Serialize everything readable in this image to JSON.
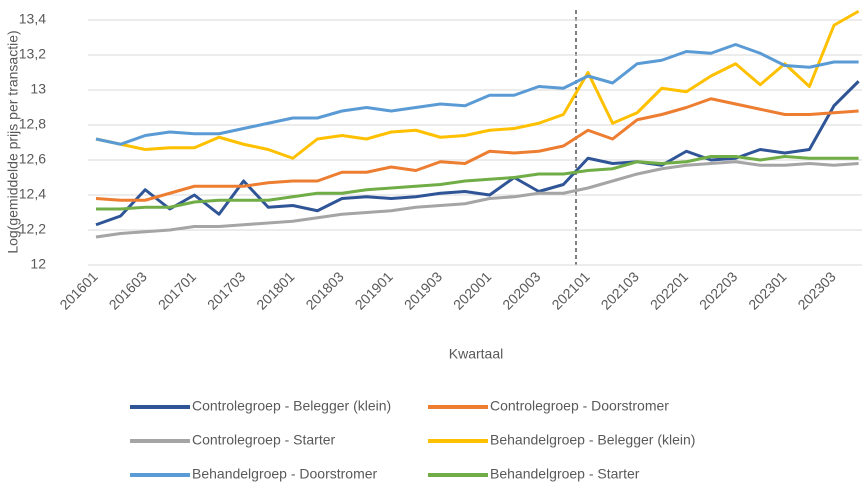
{
  "chart_data": {
    "type": "line",
    "y_label": "Log(gemiddelde prijs per transactie)",
    "x_label": "Kwartaal",
    "categories": [
      "201601",
      null,
      "201603",
      null,
      "201701",
      null,
      "201703",
      null,
      "201801",
      null,
      "201803",
      null,
      "201901",
      null,
      "201903",
      null,
      "202001",
      null,
      "202003",
      null,
      "202101",
      null,
      "202103",
      null,
      "202201",
      null,
      "202203",
      null,
      "202301",
      null,
      "202303",
      null
    ],
    "ylim": [
      12,
      13.4
    ],
    "yticks": [
      12,
      {
        "value": 12.2,
        "label": "12,2"
      },
      {
        "value": 12.4,
        "label": "12,4"
      },
      {
        "value": 12.6,
        "label": "12,6"
      },
      {
        "value": 12.8,
        "label": "12,8"
      },
      13,
      {
        "value": 13.2,
        "label": "13,2"
      },
      {
        "value": 13.4,
        "label": "13,4"
      }
    ],
    "grid": true,
    "legend": "bottom",
    "series": [
      {
        "name": "Controlegroep - Belegger (klein)",
        "color": "#2f5597",
        "values": [
          12.23,
          12.28,
          12.43,
          12.32,
          12.4,
          12.29,
          12.48,
          12.33,
          12.34,
          12.31,
          12.38,
          12.39,
          12.38,
          12.39,
          12.41,
          12.42,
          12.4,
          12.5,
          12.42,
          12.46,
          12.61,
          12.58,
          12.59,
          12.57,
          12.65,
          12.6,
          12.61,
          12.66,
          12.64,
          12.66,
          12.91,
          13.05
        ]
      },
      {
        "name": "Controlegroep - Doorstromer",
        "color": "#ed7d31",
        "values": [
          12.38,
          12.37,
          12.37,
          12.41,
          12.45,
          12.45,
          12.45,
          12.47,
          12.48,
          12.48,
          12.53,
          12.53,
          12.56,
          12.54,
          12.59,
          12.58,
          12.65,
          12.64,
          12.65,
          12.68,
          12.77,
          12.72,
          12.83,
          12.86,
          12.9,
          12.95,
          12.92,
          12.89,
          12.86,
          12.86,
          12.87,
          12.88
        ]
      },
      {
        "name": "Controlegroep - Starter",
        "color": "#a5a5a5",
        "values": [
          12.16,
          12.18,
          12.19,
          12.2,
          12.22,
          12.22,
          12.23,
          12.24,
          12.25,
          12.27,
          12.29,
          12.3,
          12.31,
          12.33,
          12.34,
          12.35,
          12.38,
          12.39,
          12.41,
          12.41,
          12.44,
          12.48,
          12.52,
          12.55,
          12.57,
          12.58,
          12.59,
          12.57,
          12.57,
          12.58,
          12.57,
          12.58
        ]
      },
      {
        "name": "Behandelgroep - Belegger (klein)",
        "color": "#ffc000",
        "values": [
          12.72,
          12.69,
          12.66,
          12.67,
          12.67,
          12.73,
          12.69,
          12.66,
          12.61,
          12.72,
          12.74,
          12.72,
          12.76,
          12.77,
          12.73,
          12.74,
          12.77,
          12.78,
          12.81,
          12.86,
          13.1,
          12.81,
          12.87,
          13.01,
          12.99,
          13.08,
          13.15,
          13.03,
          13.15,
          13.02,
          13.37,
          13.45
        ]
      },
      {
        "name": "Behandelgroep - Doorstromer",
        "color": "#5b9bd5",
        "values": [
          12.72,
          12.69,
          12.74,
          12.76,
          12.75,
          12.75,
          12.78,
          12.81,
          12.84,
          12.84,
          12.88,
          12.9,
          12.88,
          12.9,
          12.92,
          12.91,
          12.97,
          12.97,
          13.02,
          13.01,
          13.08,
          13.04,
          13.15,
          13.17,
          13.22,
          13.21,
          13.26,
          13.21,
          13.14,
          13.13,
          13.16,
          13.16
        ]
      },
      {
        "name": "Behandelgroep - Starter",
        "color": "#70ad47",
        "values": [
          12.32,
          12.32,
          12.33,
          12.33,
          12.36,
          12.37,
          12.37,
          12.37,
          12.39,
          12.41,
          12.41,
          12.43,
          12.44,
          12.45,
          12.46,
          12.48,
          12.49,
          12.5,
          12.52,
          12.52,
          12.54,
          12.55,
          12.59,
          12.58,
          12.59,
          12.62,
          12.62,
          12.6,
          12.62,
          12.61,
          12.61,
          12.61
        ]
      }
    ]
  }
}
